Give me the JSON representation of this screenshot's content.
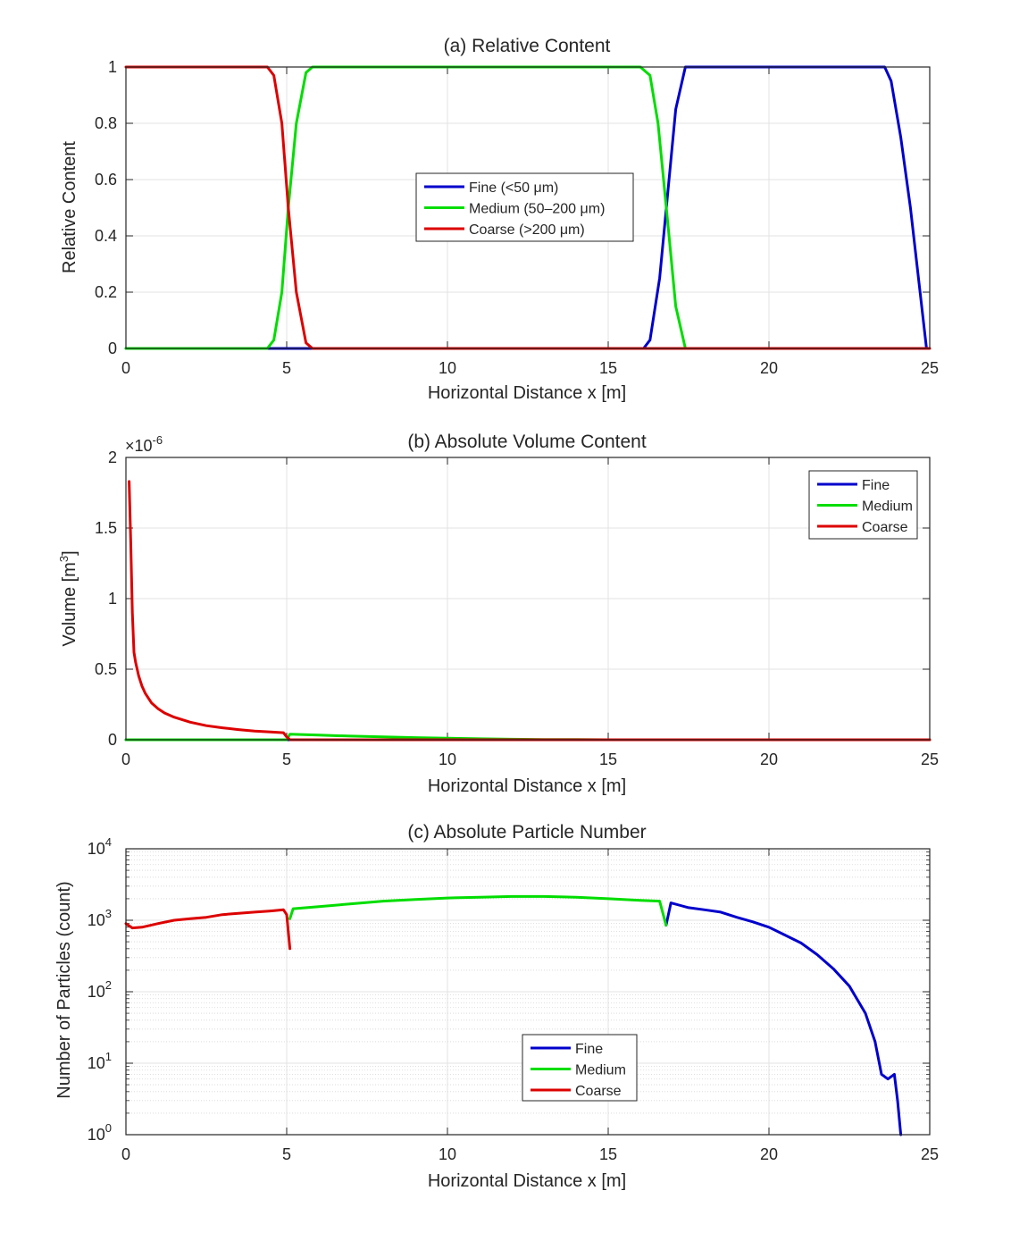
{
  "chart_data": [
    {
      "type": "line",
      "title": "(a) Relative Content",
      "xlabel": "Horizontal Distance x [m]",
      "ylabel": "Relative Content",
      "xlim": [
        0,
        25
      ],
      "ylim": [
        0,
        1
      ],
      "xticks": [
        "0",
        "5",
        "10",
        "15",
        "20",
        "25"
      ],
      "yticks": [
        "0",
        "0.2",
        "0.4",
        "0.6",
        "0.8",
        "1"
      ],
      "grid": true,
      "legend_position": "center",
      "series": [
        {
          "name": "Fine (<50 μm)",
          "color": "#0000cc",
          "x": [
            0,
            16.1,
            16.3,
            16.6,
            16.85,
            17.1,
            17.4,
            23.6,
            23.8,
            24.1,
            24.4,
            24.7,
            24.9
          ],
          "y": [
            0,
            0,
            0.03,
            0.25,
            0.55,
            0.85,
            1.0,
            1.0,
            0.95,
            0.75,
            0.5,
            0.2,
            0.0
          ]
        },
        {
          "name": "Medium (50–200 μm)",
          "color": "#00dd00",
          "x": [
            0,
            4.4,
            4.6,
            4.85,
            5.05,
            5.3,
            5.6,
            5.8,
            16.0,
            16.3,
            16.55,
            16.85,
            17.1,
            17.4
          ],
          "y": [
            0,
            0,
            0.03,
            0.2,
            0.5,
            0.8,
            0.98,
            1.0,
            1.0,
            0.97,
            0.8,
            0.45,
            0.15,
            0.0
          ]
        },
        {
          "name": "Coarse (>200 μm)",
          "color": "#dd0000",
          "x": [
            0,
            4.4,
            4.6,
            4.85,
            5.05,
            5.3,
            5.6,
            5.8,
            25
          ],
          "y": [
            1,
            1,
            0.97,
            0.8,
            0.5,
            0.2,
            0.02,
            0.0,
            0.0
          ]
        }
      ]
    },
    {
      "type": "line",
      "title": "(b) Absolute Volume Content",
      "xlabel": "Horizontal Distance x [m]",
      "ylabel": "Volume [m",
      "ylabel_sup": "3",
      "ylabel_end": "]",
      "exponent_base": "×10",
      "exponent_power": "-6",
      "xlim": [
        0,
        25
      ],
      "ylim": [
        0,
        2
      ],
      "xticks": [
        "0",
        "5",
        "10",
        "15",
        "20",
        "25"
      ],
      "yticks": [
        "0",
        "0.5",
        "1",
        "1.5",
        "2"
      ],
      "grid": true,
      "legend_position": "top-right",
      "series": [
        {
          "name": "Fine",
          "color": "#0000cc",
          "x": [
            0,
            25
          ],
          "y": [
            0,
            0
          ]
        },
        {
          "name": "Medium",
          "color": "#00dd00",
          "x": [
            0,
            5.0,
            5.1,
            6,
            7,
            8,
            9,
            10,
            11,
            12,
            13,
            14,
            15,
            25
          ],
          "y": [
            0,
            0,
            0.04,
            0.033,
            0.026,
            0.02,
            0.015,
            0.011,
            0.007,
            0.004,
            0.002,
            0.001,
            0.0,
            0.0
          ]
        },
        {
          "name": "Coarse",
          "color": "#dd0000",
          "x": [
            0.1,
            0.15,
            0.2,
            0.25,
            0.3,
            0.4,
            0.5,
            0.6,
            0.8,
            1.0,
            1.2,
            1.5,
            2.0,
            2.5,
            3.0,
            3.5,
            4.0,
            4.5,
            4.9,
            5.0,
            5.1,
            25
          ],
          "y": [
            1.83,
            1.4,
            0.9,
            0.62,
            0.55,
            0.45,
            0.38,
            0.33,
            0.26,
            0.22,
            0.19,
            0.16,
            0.125,
            0.1,
            0.085,
            0.072,
            0.062,
            0.055,
            0.05,
            0.02,
            0.0,
            0.0
          ]
        }
      ]
    },
    {
      "type": "line",
      "title": "(c) Absolute Particle Number",
      "xlabel": "Horizontal Distance x [m]",
      "ylabel": "Number of Particles (count)",
      "xlim": [
        0,
        25
      ],
      "ylim": [
        1,
        10000
      ],
      "yscale": "log",
      "xticks": [
        "0",
        "5",
        "10",
        "15",
        "20",
        "25"
      ],
      "yticks_base": "10",
      "yticks_exp": [
        "0",
        "1",
        "2",
        "3",
        "4"
      ],
      "grid": true,
      "legend_position": "bottom-center",
      "series": [
        {
          "name": "Fine",
          "color": "#0000cc",
          "x": [
            16.8,
            16.95,
            17.5,
            18,
            18.5,
            19,
            19.5,
            20,
            20.5,
            21,
            21.5,
            22,
            22.5,
            23,
            23.3,
            23.5,
            23.7,
            23.9,
            24.0,
            24.1
          ],
          "y": [
            850,
            1750,
            1500,
            1400,
            1300,
            1100,
            950,
            800,
            620,
            480,
            330,
            210,
            120,
            50,
            20,
            7,
            6,
            7,
            3,
            1
          ]
        },
        {
          "name": "Medium",
          "color": "#00dd00",
          "x": [
            5.1,
            5.2,
            6,
            7,
            8,
            9,
            10,
            11,
            12,
            13,
            14,
            15,
            16,
            16.6,
            16.8
          ],
          "y": [
            1050,
            1450,
            1550,
            1700,
            1850,
            1950,
            2050,
            2100,
            2150,
            2150,
            2100,
            2000,
            1900,
            1850,
            850
          ]
        },
        {
          "name": "Coarse",
          "color": "#dd0000",
          "x": [
            0,
            0.2,
            0.5,
            1.0,
            1.5,
            2,
            2.5,
            3,
            3.5,
            4,
            4.5,
            4.9,
            5.0,
            5.1
          ],
          "y": [
            900,
            780,
            800,
            900,
            1000,
            1050,
            1100,
            1200,
            1250,
            1300,
            1350,
            1400,
            1200,
            400
          ]
        }
      ]
    }
  ]
}
